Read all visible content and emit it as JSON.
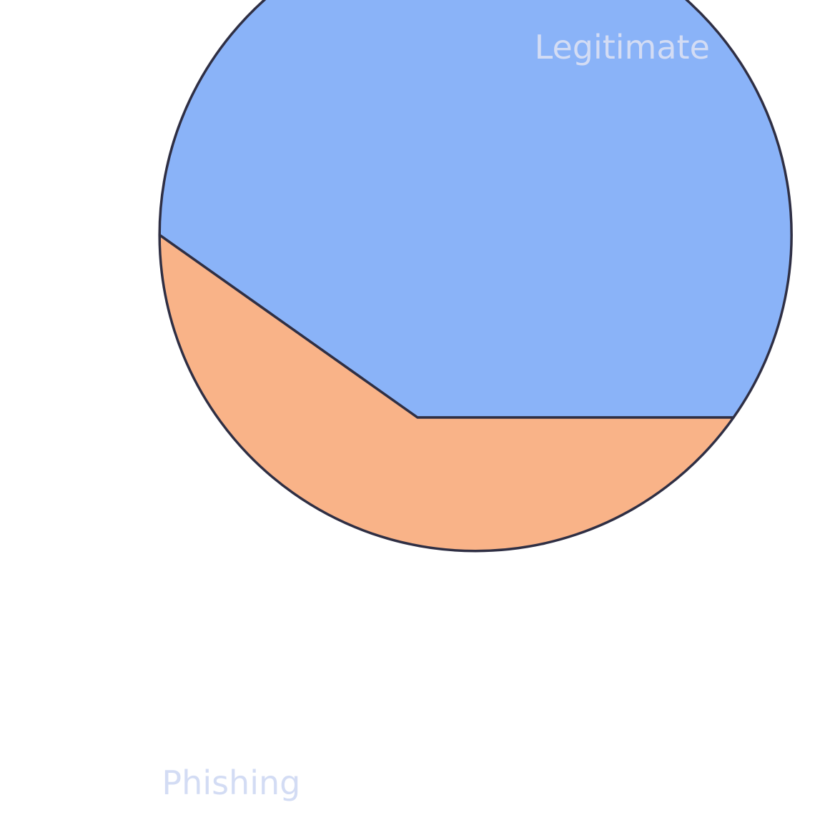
{
  "chart_data": {
    "type": "pie",
    "title": "",
    "slices": [
      {
        "label": "Phishing",
        "value": 59.8,
        "color": "#8ab3f8"
      },
      {
        "label": "Legitimate",
        "value": 40.2,
        "color": "#f9b388"
      }
    ],
    "start_angle_deg": 0,
    "direction": "counterclockwise",
    "edge_color": "#2f2f44",
    "label_color": "#d3dcf4",
    "legend": "none"
  }
}
